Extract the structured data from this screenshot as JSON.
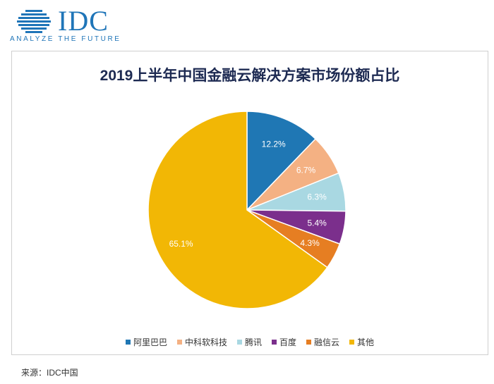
{
  "logo": {
    "wordmark": "IDC",
    "tagline": "ANALYZE THE FUTURE",
    "color": "#1f75b8"
  },
  "chart_data": {
    "type": "pie",
    "title": "2019上半年中国金融云解决方案市场份额占比",
    "slices": [
      {
        "name": "阿里巴巴",
        "value": 12.2,
        "label": "12.2%",
        "color": "#1f77b4"
      },
      {
        "name": "中科软科技",
        "value": 6.7,
        "label": "6.7%",
        "color": "#f4b183"
      },
      {
        "name": "腾讯",
        "value": 6.3,
        "label": "6.3%",
        "color": "#a9d8e2"
      },
      {
        "name": "百度",
        "value": 5.4,
        "label": "5.4%",
        "color": "#7b2f8c"
      },
      {
        "name": "融信云",
        "value": 4.3,
        "label": "4.3%",
        "color": "#e67e22"
      },
      {
        "name": "其他",
        "value": 65.1,
        "label": "65.1%",
        "color": "#f2b705"
      }
    ],
    "legend_position": "bottom"
  },
  "source": "来源：IDC中国"
}
